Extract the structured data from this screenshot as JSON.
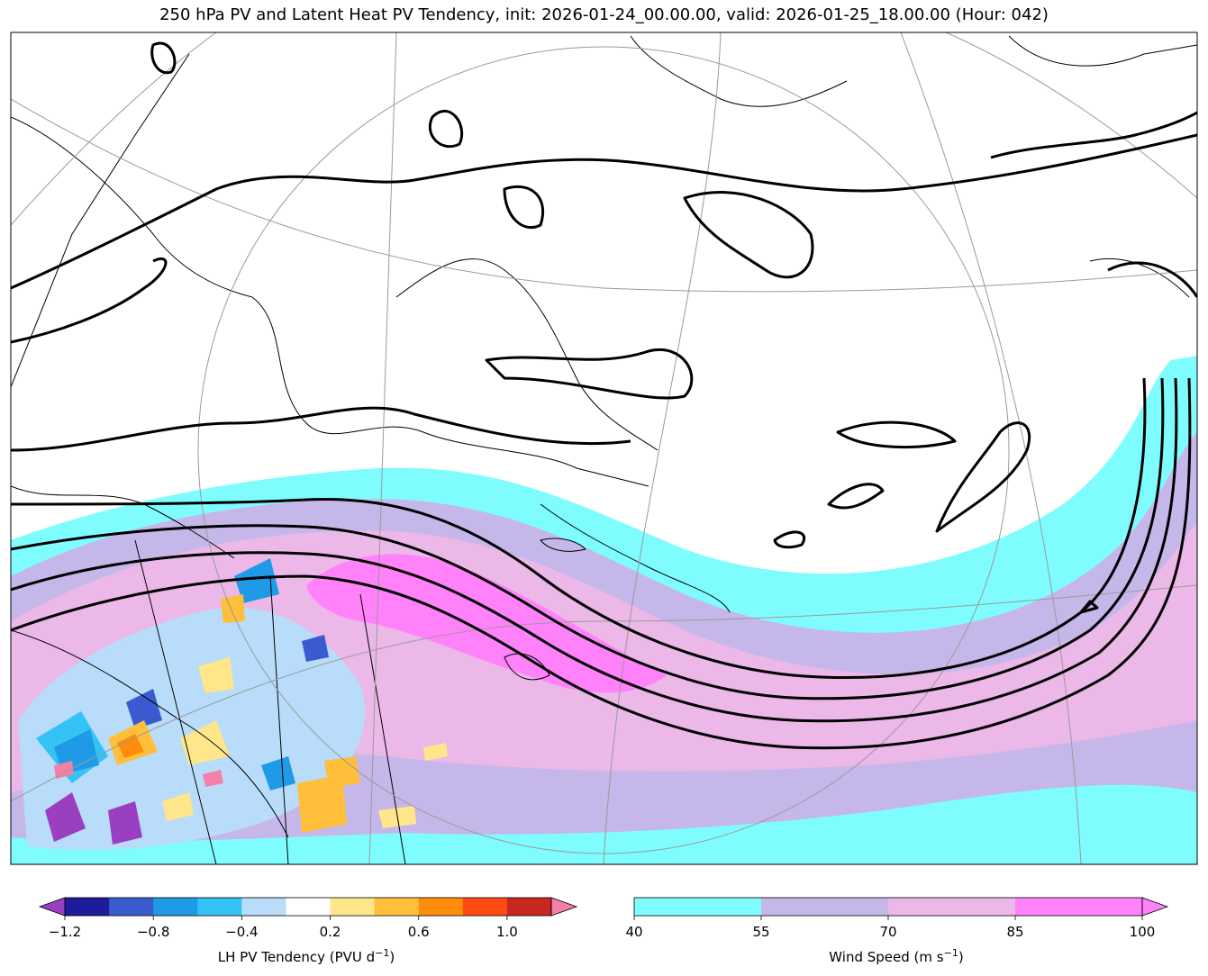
{
  "title": "250 hPa PV and Latent Heat PV Tendency, init: 2026-01-24_00.00.00, valid: 2026-01-25_18.00.00 (Hour: 042)",
  "lh_colorbar": {
    "label": "LH PV Tendency (PVU d",
    "label_sup": "−1",
    "label_end": ")",
    "ticks": [
      "−1.2",
      "−0.8",
      "−0.4",
      "0.2",
      "0.6",
      "1.0"
    ],
    "colors": [
      "#1c1c9c",
      "#3a5bd0",
      "#1f9ae6",
      "#35c2f5",
      "#b8dcfa",
      "#ffffff",
      "#ffe68a",
      "#ffbf3a",
      "#ff8c0a",
      "#ff4a14",
      "#c82820"
    ],
    "under_color": "#9a3fc0",
    "over_color": "#f47fa8"
  },
  "wind_colorbar": {
    "label": "Wind Speed (m s",
    "label_sup": "−1",
    "label_end": ")",
    "ticks": [
      "40",
      "55",
      "70",
      "85",
      "100"
    ],
    "colors": [
      "#7ffdfe",
      "#c6b7ea",
      "#ebb8e8",
      "#ff82fb"
    ]
  },
  "colors": {
    "coastline": "#000000",
    "pv_contour": "#000000",
    "graticule": "#9a9a9a"
  }
}
